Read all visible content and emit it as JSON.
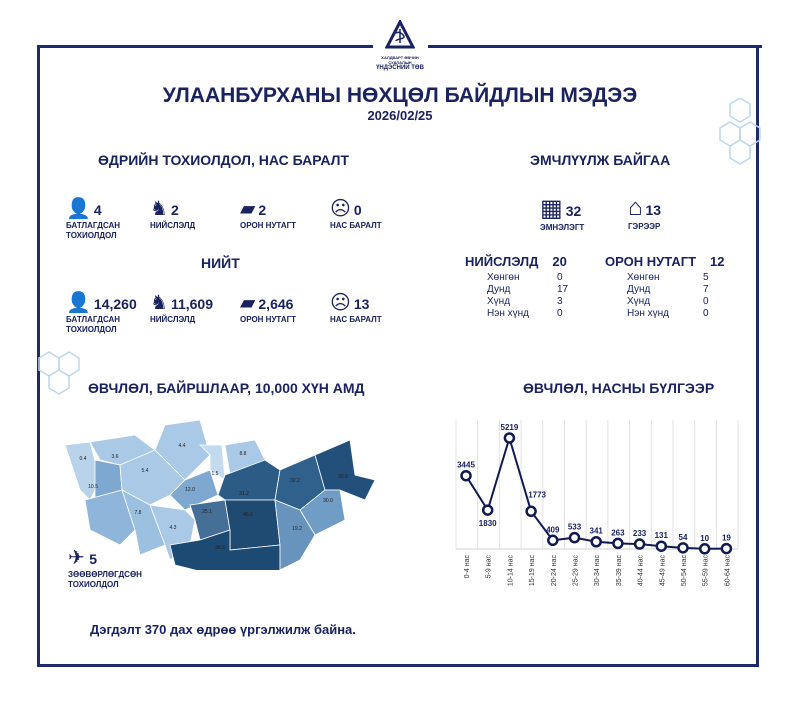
{
  "header": {
    "org_line1": "ХАЛДВАРТ ӨВЧИН СУДЛАЛЫН",
    "org_line2": "ҮНДЭСНИЙ ТӨВ",
    "title": "УЛААНБУРХАНЫ НӨХЦӨЛ БАЙДЛЫН МЭДЭЭ",
    "date": "2026/02/25"
  },
  "daily": {
    "heading": "ӨДРИЙН ТОХИОЛДОЛ, НАС БАРАЛТ",
    "items": [
      {
        "icon": "person-icon",
        "value": "4",
        "label": "БАТЛАГДСАН ТОХИОЛДОЛ"
      },
      {
        "icon": "statue-icon",
        "value": "2",
        "label": "НИЙСЛЭЛД"
      },
      {
        "icon": "mongolia-map-icon",
        "value": "2",
        "label": "ОРОН НУТАГТ"
      },
      {
        "icon": "deceased-icon",
        "value": "0",
        "label": "НАС БАРАЛТ"
      }
    ]
  },
  "total": {
    "heading": "НИЙТ",
    "items": [
      {
        "icon": "person-icon",
        "value": "14,260",
        "label": "БАТЛАГДСАН ТОХИОЛДОЛ"
      },
      {
        "icon": "statue-icon",
        "value": "11,609",
        "label": "НИЙСЛЭЛД"
      },
      {
        "icon": "mongolia-map-icon",
        "value": "2,646",
        "label": "ОРОН НУТАГТ"
      },
      {
        "icon": "deceased-icon",
        "value": "13",
        "label": "НАС БАРАЛТ"
      }
    ]
  },
  "treatment": {
    "heading": "ЭМЧЛҮҮЛЖ БАЙГАА",
    "items": [
      {
        "icon": "hospital-icon",
        "value": "32",
        "label": "ЭМНЭЛЭГТ"
      },
      {
        "icon": "home-icon",
        "value": "13",
        "label": "ГЭРЭЭР"
      }
    ],
    "groups": [
      {
        "title": "НИЙСЛЭЛД",
        "total": "20",
        "rows": [
          {
            "k": "Хөнгөн",
            "v": "0"
          },
          {
            "k": "Дунд",
            "v": "17"
          },
          {
            "k": "Хүнд",
            "v": "3"
          },
          {
            "k": "Нэн хүнд",
            "v": "0"
          }
        ]
      },
      {
        "title": "ОРОН НУТАГТ",
        "total": "12",
        "rows": [
          {
            "k": "Хөнгөн",
            "v": "5"
          },
          {
            "k": "Дунд",
            "v": "7"
          },
          {
            "k": "Хүнд",
            "v": "0"
          },
          {
            "k": "Нэн хүнд",
            "v": "0"
          }
        ]
      }
    ]
  },
  "map": {
    "heading": "ӨВЧЛӨЛ, БАЙРШЛААР, 10,000 ХҮН АМД",
    "region_labels": [
      "0.4",
      "3.6",
      "4.4",
      "5.4",
      "1.5",
      "8.8",
      "10.5",
      "12.0",
      "7.8",
      "4.3",
      "25.1",
      "46.6",
      "38.5",
      "19.2",
      "30.0",
      "31.2",
      "32.2",
      "32.8"
    ],
    "imported": {
      "icon": "airplane-icon",
      "value": "5",
      "label": "ЗӨӨВӨРЛӨГДСӨН ТОХИОЛДОЛ"
    }
  },
  "footer": "Дэгдэлт 370 дах өдрөө үргэлжилж байна.",
  "chart_data": {
    "type": "line",
    "title": "ӨВЧЛӨЛ, НАСНЫ БҮЛГЭЭР",
    "categories": [
      "0-4 нас",
      "5-9 нас",
      "10-14 нас",
      "15-19 нас",
      "20-24 нас",
      "25-29 нас",
      "30-34 нас",
      "35-39 нас",
      "40-44 нас",
      "45-49 нас",
      "50-54 нас",
      "55-59 нас",
      "60-64 нас"
    ],
    "values": [
      3445,
      1830,
      5219,
      1773,
      409,
      533,
      341,
      263,
      233,
      131,
      54,
      10,
      19
    ],
    "ylim": [
      0,
      5219
    ],
    "grid": "vertical",
    "color": "#101a50"
  }
}
